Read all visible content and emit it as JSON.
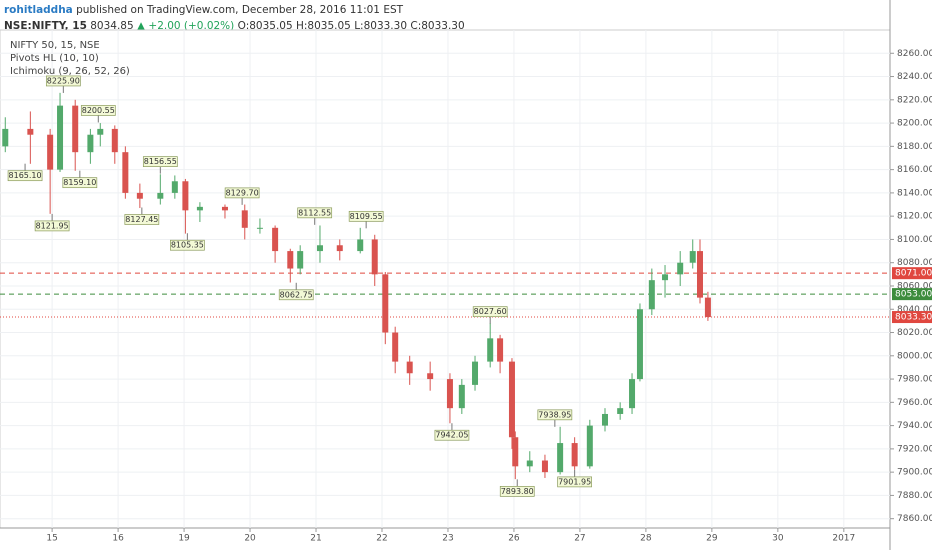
{
  "header": {
    "user": "rohitladdha",
    "published": "published on TradingView.com, December 28, 2016 11:01 EST",
    "symbol": "NSE:NIFTY, 15",
    "last": "8034.85",
    "change": "▲ +2.00 (+0.02%)",
    "open": "O:8035.05",
    "high": "H:8035.05",
    "low": "L:8033.30",
    "close": "C:8033.30"
  },
  "chart_data": {
    "type": "candlestick",
    "legend": [
      "NIFTY 50, 15, NSE",
      "Pivots HL (10, 10)",
      "Ichimoku (9, 26, 52, 26)"
    ],
    "up_color": "#53a96b",
    "down_color": "#d9534f",
    "grid": true,
    "xlim": [
      -0.79,
      12.7
    ],
    "xticks": [
      {
        "value": 0,
        "label": "15"
      },
      {
        "value": 1,
        "label": "16"
      },
      {
        "value": 2,
        "label": "19"
      },
      {
        "value": 3,
        "label": "20"
      },
      {
        "value": 4,
        "label": "21"
      },
      {
        "value": 5,
        "label": "22"
      },
      {
        "value": 6,
        "label": "23"
      },
      {
        "value": 7,
        "label": "26"
      },
      {
        "value": 8,
        "label": "27"
      },
      {
        "value": 9,
        "label": "28"
      },
      {
        "value": 10,
        "label": "29"
      },
      {
        "value": 11,
        "label": "30"
      },
      {
        "value": 12,
        "label": "2017"
      }
    ],
    "ylim": [
      7852,
      8280
    ],
    "yticks": [
      {
        "value": 7860,
        "label": "7860.00"
      },
      {
        "value": 7880,
        "label": "7880.00"
      },
      {
        "value": 7900,
        "label": "7900.00"
      },
      {
        "value": 7920,
        "label": "7920.00"
      },
      {
        "value": 7940,
        "label": "7940.00"
      },
      {
        "value": 7960,
        "label": "7960.00"
      },
      {
        "value": 7980,
        "label": "7980.00"
      },
      {
        "value": 8000,
        "label": "8000.00"
      },
      {
        "value": 8020,
        "label": "8020.00"
      },
      {
        "value": 8040,
        "label": "8040.00"
      },
      {
        "value": 8060,
        "label": "8060.00"
      },
      {
        "value": 8080,
        "label": "8080.00"
      },
      {
        "value": 8100,
        "label": "8100.00"
      },
      {
        "value": 8120,
        "label": "8120.00"
      },
      {
        "value": 8140,
        "label": "8140.00"
      },
      {
        "value": 8160,
        "label": "8160.00"
      },
      {
        "value": 8180,
        "label": "8180.00"
      },
      {
        "value": 8200,
        "label": "8200.00"
      },
      {
        "value": 8220,
        "label": "8220.00"
      },
      {
        "value": 8240,
        "label": "8240.00"
      },
      {
        "value": 8260,
        "label": "8260.00"
      }
    ],
    "x": [
      -0.71,
      -0.33,
      -0.03,
      0.12,
      0.35,
      0.58,
      0.73,
      0.95,
      1.11,
      1.33,
      1.64,
      1.86,
      2.02,
      2.24,
      2.62,
      2.92,
      3.15,
      3.38,
      3.61,
      3.76,
      4.06,
      4.36,
      4.67,
      4.89,
      5.05,
      5.2,
      5.42,
      5.73,
      6.03,
      6.21,
      6.41,
      6.64,
      6.79,
      6.97,
      7.02,
      7.24,
      7.47,
      7.7,
      7.92,
      8.15,
      8.38,
      8.61,
      8.79,
      8.91,
      9.09,
      9.29,
      9.52,
      9.71,
      9.82,
      9.94
    ],
    "open": [
      8180,
      8195,
      8190,
      8160,
      8215,
      8175,
      8190,
      8195,
      8175,
      8140,
      8135,
      8140,
      8150,
      8125,
      8128,
      8125,
      8110,
      8110,
      8090,
      8075,
      8090,
      8095,
      8090,
      8100,
      8070,
      8020,
      7995,
      7985,
      7980,
      7955,
      7975,
      7995,
      8015,
      7995,
      7930,
      7905,
      7910,
      7900,
      7925,
      7905,
      7940,
      7950,
      7955,
      7980,
      8040,
      8065,
      8070,
      8080,
      8090,
      8050
    ],
    "high": [
      8205,
      8210,
      8195,
      8226,
      8220,
      8195,
      8200,
      8198,
      8180,
      8148,
      8156,
      8155,
      8152,
      8132,
      8130,
      8130,
      8118,
      8112,
      8092,
      8095,
      8112,
      8100,
      8110,
      8104,
      8072,
      8025,
      8000,
      7995,
      7985,
      7980,
      8000,
      8028,
      8018,
      7998,
      7935,
      7918,
      7915,
      7939,
      7930,
      7945,
      7955,
      7960,
      7985,
      8045,
      8075,
      8078,
      8090,
      8100,
      8100,
      8055
    ],
    "low": [
      8175,
      8165,
      8122,
      8158,
      8159,
      8165,
      8180,
      8165,
      8135,
      8127,
      8130,
      8135,
      8105,
      8115,
      8118,
      8100,
      8105,
      8080,
      8063,
      8070,
      8080,
      8082,
      8088,
      8060,
      8010,
      7985,
      7975,
      7970,
      7942,
      7950,
      7970,
      7990,
      7985,
      7920,
      7894,
      7900,
      7895,
      7898,
      7902,
      7903,
      7935,
      7945,
      7950,
      7978,
      8035,
      8050,
      8060,
      8075,
      8045,
      8030
    ],
    "close": [
      8195,
      8190,
      8160,
      8215,
      8175,
      8190,
      8195,
      8175,
      8140,
      8135,
      8140,
      8150,
      8125,
      8128,
      8125,
      8110,
      8110,
      8090,
      8075,
      8090,
      8095,
      8090,
      8100,
      8070,
      8020,
      7995,
      7985,
      7980,
      7955,
      7975,
      7995,
      8015,
      7995,
      7930,
      7905,
      7910,
      7900,
      7925,
      7905,
      7940,
      7950,
      7955,
      7980,
      8040,
      8065,
      8070,
      8080,
      8090,
      8050,
      8033.3
    ],
    "pivots": {
      "x": [
        0.17,
        0.7,
        -0.41,
        0.42,
        1.64,
        1.36,
        2.88,
        0,
        2.05,
        3.98,
        4.76,
        3.7,
        6.64,
        6.06,
        7.62,
        7.05,
        7.92
      ],
      "values": [
        8225.9,
        8200.55,
        8165.1,
        8159.1,
        8156.55,
        8127.45,
        8129.7,
        8121.95,
        8105.35,
        8112.55,
        8109.55,
        8062.75,
        8027.6,
        7942.05,
        7938.95,
        7893.8,
        7901.95
      ],
      "value_labels": [
        "8225.90",
        "8200.55",
        "8165.10",
        "8159.10",
        "8156.55",
        "8127.45",
        "8129.70",
        "8121.95",
        "8105.35",
        "8112.55",
        "8109.55",
        "8062.75",
        "8027.60",
        "7942.05",
        "7938.95",
        "7893.80",
        "7901.95"
      ],
      "position": [
        "above",
        "above",
        "below",
        "below",
        "above",
        "below",
        "above",
        "below",
        "below",
        "above",
        "above",
        "below",
        "above",
        "below",
        "above",
        "below",
        "below"
      ]
    },
    "hlines": [
      {
        "value": 8071,
        "label": "8071.00",
        "color": "#e0473f",
        "style": "dashed"
      },
      {
        "value": 8053,
        "label": "8053.00",
        "color": "#3d8c3d",
        "style": "dashed"
      },
      {
        "value": 8033.3,
        "label": "8033.30",
        "color": "#e0473f",
        "style": "dotted"
      }
    ]
  }
}
